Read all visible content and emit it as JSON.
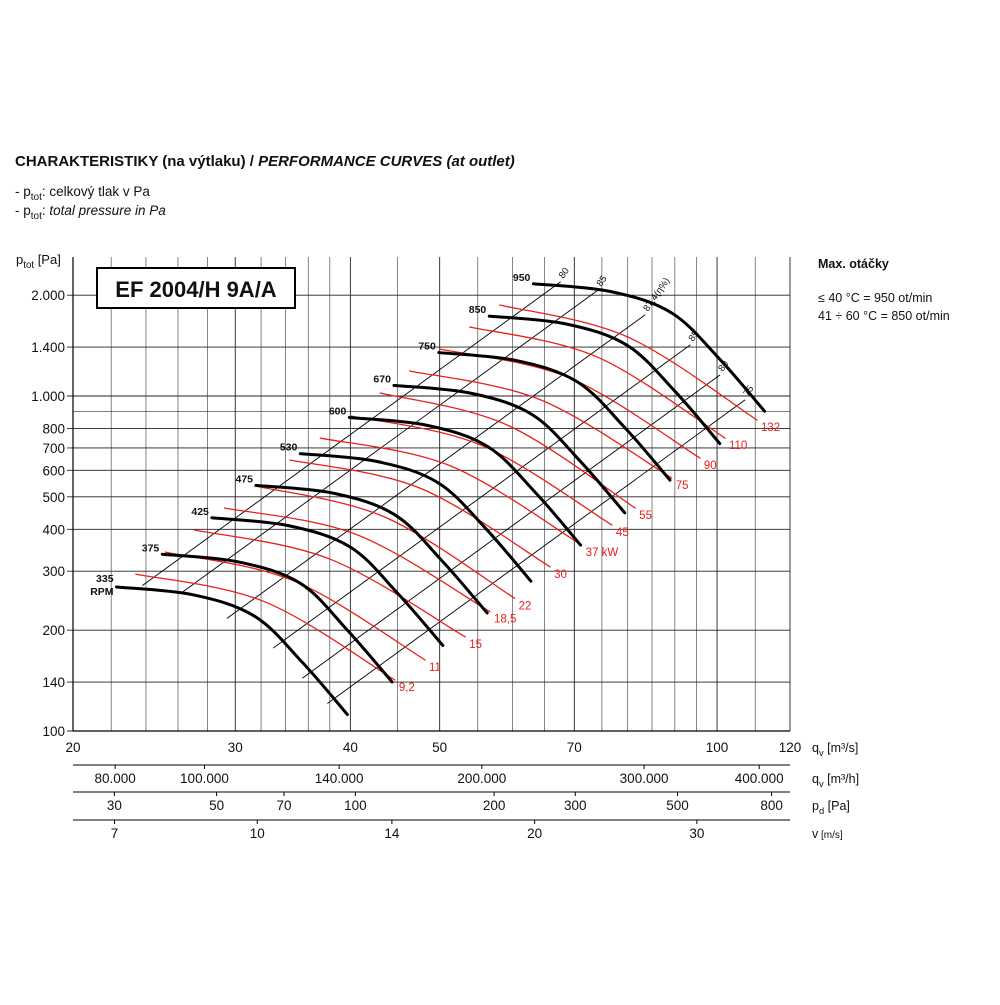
{
  "header": {
    "title": "CHARAKTERISTIKY (na výtlaku) / ",
    "title_italic": "PERFORMANCE CURVES (at outlet)",
    "notes": [
      {
        "prefix": "- ",
        "symbol": "p",
        "sub": "tot",
        "sep": ": ",
        "text": "celkový tlak v Pa",
        "italic": false
      },
      {
        "prefix": "- ",
        "symbol": "p",
        "sub": "tot",
        "sep": ": ",
        "text": "total pressure in Pa",
        "italic": true
      }
    ]
  },
  "max_speed": {
    "title": "Max. otáčky",
    "lines": [
      "≤ 40 °C = 950 ot/min",
      "41 ÷ 60 °C = 850 ot/min"
    ]
  },
  "chart_data": {
    "type": "line",
    "model": "EF 2004/H 9A/A",
    "y_label": {
      "symbol": "p",
      "sub": "tot",
      "unit": " [Pa]"
    },
    "x_label": {
      "symbol": "q",
      "sub": "v",
      "unit": " [m³/s]"
    },
    "log_x": true,
    "log_y": true,
    "grid": true,
    "xlim": [
      20,
      120
    ],
    "xticks": [
      20,
      30,
      40,
      50,
      70,
      100,
      120
    ],
    "x_minor_ticks": [
      22,
      24,
      26,
      28,
      32,
      34,
      36,
      38,
      45,
      55,
      60,
      65,
      75,
      80,
      85,
      90,
      95,
      110
    ],
    "ylim": [
      100,
      2600
    ],
    "yticks": [
      100,
      140,
      200,
      300,
      400,
      500,
      600,
      700,
      800,
      {
        "value": 1000,
        "label": "1.000"
      },
      {
        "value": 1400,
        "label": "1.400"
      },
      {
        "value": 2000,
        "label": "2.000"
      }
    ],
    "y_minor_ticks": [
      900
    ],
    "secondary_x_axes": [
      {
        "label": {
          "symbol": "q",
          "sub": "v",
          "unit": " [m³/h]"
        },
        "xlim": [
          72000,
          432000
        ],
        "xticks": [
          {
            "value": 80000,
            "label": "80.000"
          },
          {
            "value": 100000,
            "label": "100.000"
          },
          {
            "value": 140000,
            "label": "140.000"
          },
          {
            "value": 200000,
            "label": "200.000"
          },
          {
            "value": 300000,
            "label": "300.000"
          },
          {
            "value": 400000,
            "label": "400.000"
          }
        ]
      },
      {
        "label": {
          "symbol": "p",
          "sub": "d",
          "unit": " [Pa]"
        },
        "xlim": [
          24.4,
          877
        ],
        "xticks": [
          30,
          50,
          70,
          100,
          200,
          300,
          500,
          800
        ]
      },
      {
        "label": {
          "symbol": "v",
          "unit": " [m/s]"
        },
        "xlim": [
          6.31,
          37.86
        ],
        "xticks": [
          7,
          10,
          14,
          20,
          30
        ]
      }
    ],
    "rpm_unit": "RPM",
    "series": [
      {
        "name": "335",
        "color": "#000000",
        "x": [
          22.3,
          27,
          31.5,
          35.5,
          39.7
        ],
        "values": [
          269,
          255,
          220,
          160,
          112
        ]
      },
      {
        "name": "375",
        "color": "#000000",
        "x": [
          25.0,
          30.2,
          35.3,
          39.7,
          44.4
        ],
        "values": [
          337,
          320,
          276,
          200,
          140
        ]
      },
      {
        "name": "425",
        "color": "#000000",
        "x": [
          28.3,
          34.3,
          40.0,
          45.0,
          50.4
        ],
        "values": [
          433,
          410,
          354,
          258,
          180
        ]
      },
      {
        "name": "475",
        "color": "#000000",
        "x": [
          31.6,
          38.3,
          44.7,
          50.3,
          56.3
        ],
        "values": [
          541,
          513,
          442,
          322,
          225
        ]
      },
      {
        "name": "530",
        "color": "#000000",
        "x": [
          35.3,
          42.7,
          49.8,
          56.2,
          62.8
        ],
        "values": [
          673,
          638,
          551,
          400,
          280
        ]
      },
      {
        "name": "600",
        "color": "#000000",
        "x": [
          39.9,
          48.4,
          56.4,
          63.6,
          71.1
        ],
        "values": [
          863,
          818,
          706,
          513,
          359
        ]
      },
      {
        "name": "670",
        "color": "#000000",
        "x": [
          44.6,
          54.0,
          63.0,
          71.0,
          79.4
        ],
        "values": [
          1076,
          1020,
          880,
          640,
          448
        ]
      },
      {
        "name": "750",
        "color": "#000000",
        "x": [
          49.9,
          60.4,
          70.5,
          79.5,
          88.9
        ],
        "values": [
          1348,
          1278,
          1103,
          802,
          561
        ]
      },
      {
        "name": "850",
        "color": "#000000",
        "x": [
          56.6,
          68.5,
          79.9,
          90.1,
          100.7
        ],
        "values": [
          1732,
          1642,
          1416,
          1030,
          721
        ]
      },
      {
        "name": "950",
        "color": "#000000",
        "x": [
          63.2,
          76.6,
          89.3,
          100.7,
          112.6
        ],
        "values": [
          2163,
          2051,
          1769,
          1287,
          901
        ]
      }
    ],
    "power_curves": [
      {
        "name": "9,2",
        "color": "#e8201a",
        "x": [
          23.4,
          32.3,
          44.7
        ],
        "values": [
          294,
          243,
          142
        ]
      },
      {
        "name": "11",
        "color": "#e8201a",
        "x": [
          25.2,
          34.8,
          48.2
        ],
        "values": [
          342,
          280,
          163
        ]
      },
      {
        "name": "15",
        "color": "#e8201a",
        "x": [
          27.1,
          38.0,
          53.3
        ],
        "values": [
          398,
          326,
          191
        ]
      },
      {
        "name": "18,5",
        "color": "#e8201a",
        "x": [
          29.2,
          40.7,
          56.7
        ],
        "values": [
          463,
          385,
          227
        ]
      },
      {
        "name": "22",
        "color": "#e8201a",
        "x": [
          31.5,
          43.6,
          60.3
        ],
        "values": [
          539,
          435,
          249
        ]
      },
      {
        "name": "30",
        "color": "#e8201a",
        "x": [
          34.4,
          47.6,
          65.9
        ],
        "values": [
          644,
          531,
          309
        ]
      },
      {
        "name": "37 kW",
        "color": "#e8201a",
        "x": [
          37.1,
          51.4,
          71.3
        ],
        "values": [
          749,
          618,
          359
        ]
      },
      {
        "name": "45",
        "color": "#e8201a",
        "x": [
          40.0,
          55.4,
          76.9
        ],
        "values": [
          872,
          714,
          412
        ]
      },
      {
        "name": "55",
        "color": "#e8201a",
        "x": [
          43.1,
          59.2,
          81.5
        ],
        "values": [
          1021,
          819,
          463
        ]
      },
      {
        "name": "75",
        "color": "#e8201a",
        "x": [
          46.4,
          64.4,
          89.3
        ],
        "values": [
          1188,
          973,
          569
        ]
      },
      {
        "name": "90",
        "color": "#e8201a",
        "x": [
          50.0,
          69.2,
          95.8
        ],
        "values": [
          1381,
          1132,
          653
        ]
      },
      {
        "name": "110",
        "color": "#e8201a",
        "x": [
          53.9,
          74.1,
          102.0
        ],
        "values": [
          1607,
          1308,
          749
        ]
      },
      {
        "name": "132",
        "color": "#e8201a",
        "x": [
          58.1,
          80.0,
          110.5
        ],
        "values": [
          1869,
          1500,
          848
        ]
      }
    ],
    "efficiency_color": "#000000",
    "efficiency_lines": [
      {
        "name": "80",
        "x": [
          67.6,
          23.8
        ],
        "values": [
          2189,
          272
        ]
      },
      {
        "name": "85",
        "x": [
          74.3,
          26.2
        ],
        "values": [
          2072,
          258
        ]
      },
      {
        "name": "87,4(η%)",
        "x": [
          83.5,
          29.4
        ],
        "values": [
          1745,
          217
        ]
      },
      {
        "name": "85",
        "x": [
          93.5,
          33.0
        ],
        "values": [
          1420,
          177
        ]
      },
      {
        "name": "80",
        "x": [
          100.7,
          35.5
        ],
        "values": [
          1155,
          144
        ]
      },
      {
        "name": "75",
        "x": [
          107.2,
          37.8
        ],
        "values": [
          973,
          121
        ]
      }
    ]
  }
}
